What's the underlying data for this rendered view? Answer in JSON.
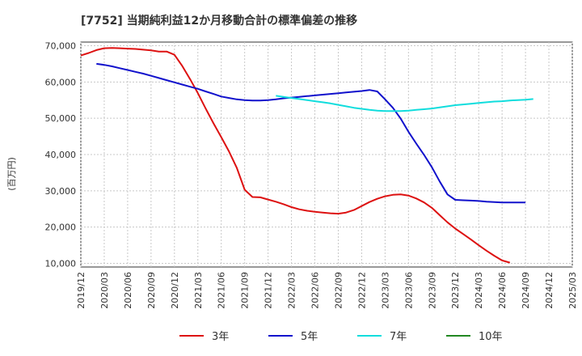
{
  "chart_data": {
    "type": "line",
    "title": "[7752]  当期純利益12か月移動合計の標準偏差の推移",
    "ylabel": "(百万円)",
    "xlabel": "",
    "ylim": [
      9000,
      71000
    ],
    "y_ticks": [
      10000,
      20000,
      30000,
      40000,
      50000,
      60000,
      70000
    ],
    "y_tick_labels": [
      "10,000",
      "20,000",
      "30,000",
      "40,000",
      "50,000",
      "60,000",
      "70,000"
    ],
    "x_ticks": [
      "2019/12",
      "2020/03",
      "2020/06",
      "2020/09",
      "2020/12",
      "2021/03",
      "2021/06",
      "2021/09",
      "2021/12",
      "2022/03",
      "2022/06",
      "2022/09",
      "2022/12",
      "2023/03",
      "2023/06",
      "2023/09",
      "2023/12",
      "2024/03",
      "2024/06",
      "2024/09",
      "2024/12",
      "2025/03"
    ],
    "grid": true,
    "legend_position": "bottom-center",
    "series": [
      {
        "name": "3年",
        "color": "#dd1111",
        "start": "2019/12",
        "values": [
          67300,
          68000,
          68800,
          69300,
          69400,
          69300,
          69200,
          69100,
          68900,
          68700,
          68400,
          68400,
          67500,
          64400,
          60800,
          56900,
          52700,
          48600,
          44800,
          40800,
          36300,
          30300,
          28300,
          28200,
          27600,
          27000,
          26300,
          25500,
          24900,
          24500,
          24200,
          24000,
          23800,
          23700,
          24000,
          24700,
          25800,
          26900,
          27800,
          28500,
          28900,
          29000,
          28700,
          27900,
          26800,
          25300,
          23300,
          21300,
          19600,
          18100,
          16600,
          15000,
          13500,
          12100,
          10800,
          10200
        ]
      },
      {
        "name": "5年",
        "color": "#1111cc",
        "start": "2020/02",
        "values": [
          65000,
          64700,
          64300,
          63800,
          63300,
          62800,
          62300,
          61700,
          61100,
          60500,
          59900,
          59300,
          58700,
          58100,
          57400,
          56700,
          56000,
          55600,
          55200,
          55000,
          54900,
          54900,
          55000,
          55200,
          55500,
          55700,
          55900,
          56100,
          56300,
          56500,
          56700,
          56900,
          57100,
          57300,
          57500,
          57800,
          57400,
          55200,
          52900,
          49900,
          46300,
          43000,
          39900,
          36500,
          32600,
          29000,
          27500,
          27400,
          27300,
          27200,
          27000,
          26900,
          26800,
          26800,
          26800,
          26800
        ]
      },
      {
        "name": "7年",
        "color": "#11dddd",
        "start": "2022/01",
        "values": [
          56200,
          55900,
          55600,
          55300,
          55000,
          54700,
          54400,
          54100,
          53700,
          53300,
          52900,
          52600,
          52300,
          52100,
          52000,
          52000,
          52000,
          52100,
          52300,
          52500,
          52700,
          53000,
          53300,
          53600,
          53800,
          54000,
          54200,
          54400,
          54600,
          54700,
          54900,
          55000,
          55100,
          55300
        ]
      },
      {
        "name": "10年",
        "color": "#228822",
        "start": "2024/12",
        "values": []
      }
    ]
  }
}
